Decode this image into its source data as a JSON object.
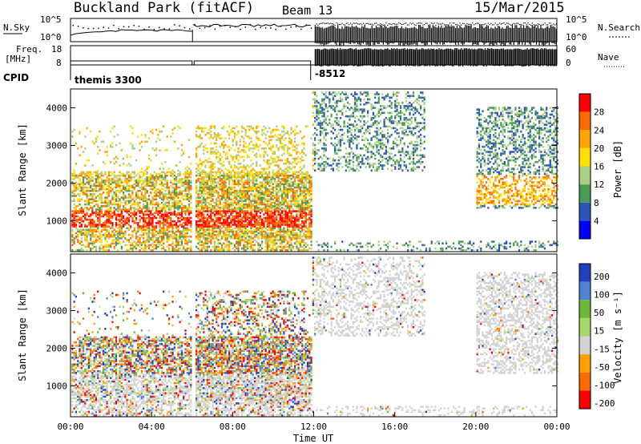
{
  "header": {
    "title": "Buckland Park (fitACF)",
    "beam": "Beam 13",
    "date": "15/Mar/2015"
  },
  "colors": {
    "scale": [
      "#0000ff",
      "#2b55b8",
      "#4b9a55",
      "#a8d080",
      "#ffe000",
      "#ffa500",
      "#ff6a00",
      "#ff0000"
    ],
    "velocity_scale": [
      "#2040c0",
      "#4f82d0",
      "#70b83a",
      "#a6d86a",
      "#d2d2d2",
      "#ffa000",
      "#ff6a00",
      "#ff0000"
    ]
  },
  "chart_data": [
    {
      "type": "line",
      "name": "noise-and-search",
      "labels_left": [
        "N.Sky",
        "10^5",
        "10^0"
      ],
      "labels_right": [
        "10^5",
        "10^0",
        "N.Search"
      ],
      "x": [
        "00:00",
        "04:00",
        "08:00",
        "12:00",
        "16:00",
        "20:00",
        "00:00"
      ],
      "ylim_log10": [
        0,
        5
      ]
    },
    {
      "type": "line",
      "name": "freq-nave",
      "labels_left": [
        "Freq.",
        "[MHz]",
        "18",
        "8"
      ],
      "labels_right": [
        "60",
        "0",
        "Nave"
      ],
      "cpid_label": "CPID",
      "cpid_values": [
        "themis 3300",
        "-8512"
      ],
      "freq_mhz_approx": [
        10.5,
        10.5
      ],
      "nave_approx": [
        8,
        55
      ]
    },
    {
      "type": "heatmap",
      "name": "power",
      "ylabel": "Slant Range [km]",
      "yticks": [
        "1000",
        "2000",
        "3000",
        "4000"
      ],
      "ylim": [
        180,
        4500
      ],
      "colorbar": {
        "label": "Power [dB]",
        "ticks": [
          "4",
          "8",
          "12",
          "16",
          "20",
          "24",
          "28"
        ],
        "range": [
          0,
          32
        ]
      }
    },
    {
      "type": "heatmap",
      "name": "velocity",
      "ylabel": "Slant Range [km]",
      "yticks": [
        "1000",
        "2000",
        "3000",
        "4000"
      ],
      "ylim": [
        180,
        4500
      ],
      "xlabel": "Time UT",
      "xticks": [
        "00:00",
        "04:00",
        "08:00",
        "12:00",
        "16:00",
        "20:00",
        "00:00"
      ],
      "colorbar": {
        "label": "Velocity [m s⁻¹]",
        "ticks": [
          "200",
          "100",
          "50",
          "15",
          "-15",
          "-50",
          "-100",
          "-200"
        ]
      }
    }
  ]
}
